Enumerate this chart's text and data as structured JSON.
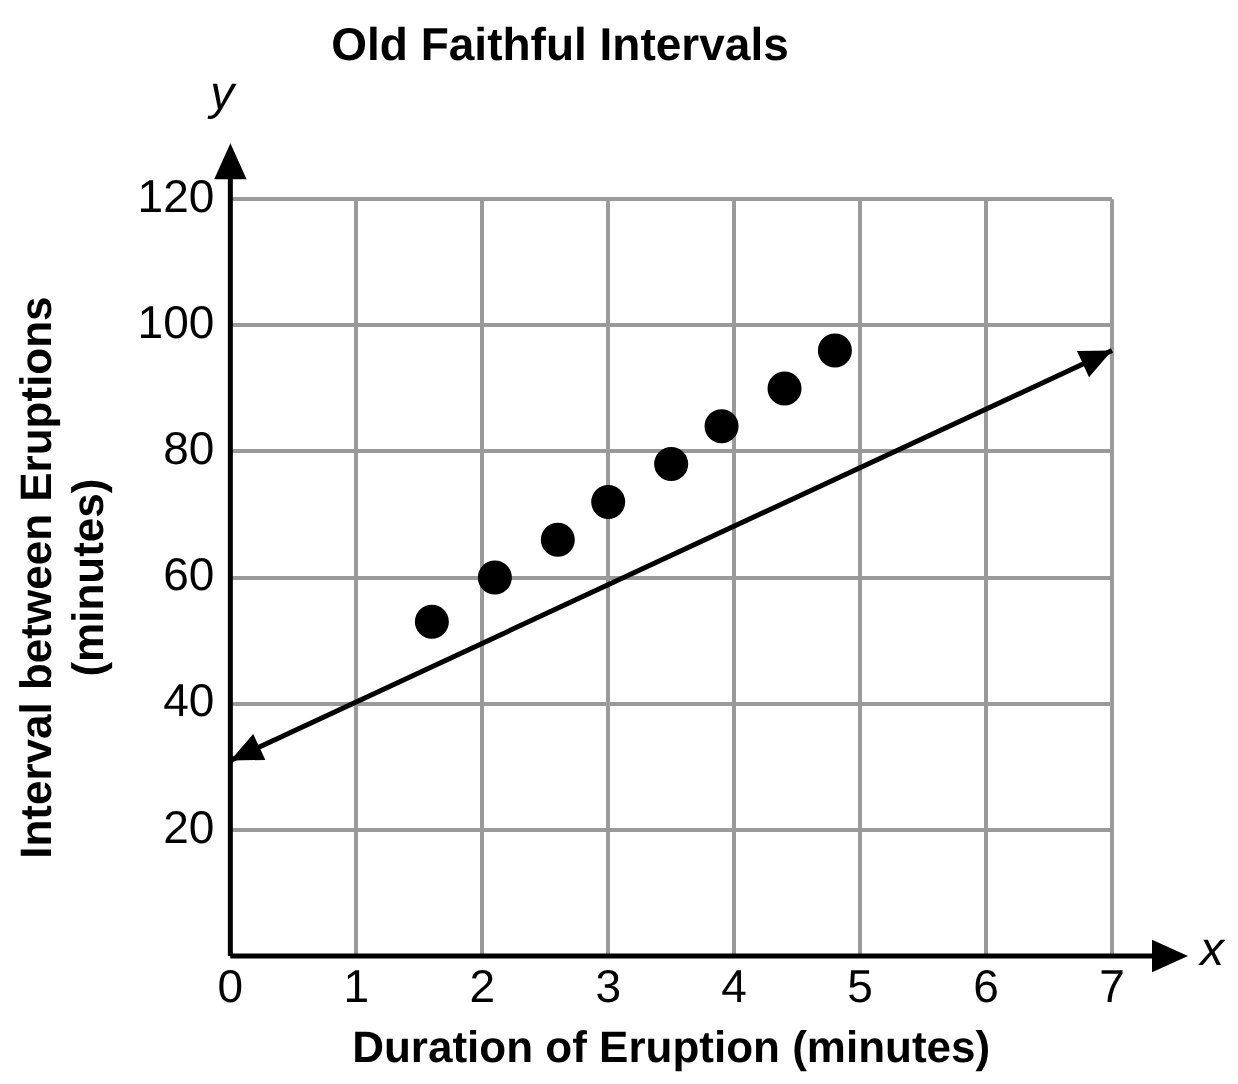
{
  "chart_data": {
    "type": "scatter",
    "title": "Old Faithful Intervals",
    "xlabel": "Duration of Eruption (minutes)",
    "ylabel": "Interval between Eruptions (minutes)",
    "annotations": [
      "x",
      "y"
    ],
    "xlim": [
      0,
      7
    ],
    "ylim": [
      0,
      120
    ],
    "xticks": [
      0,
      1,
      2,
      3,
      4,
      5,
      6,
      7
    ],
    "yticks": [
      {
        "value": 0,
        "label": null
      },
      20,
      40,
      60,
      80,
      100,
      120
    ],
    "grid": true,
    "series": [
      {
        "marker": "circle",
        "color": "#000000",
        "x": [
          1.6,
          2.1,
          2.6,
          3.0,
          3.5,
          3.9,
          4.4,
          4.8
        ],
        "values": [
          53,
          60,
          66,
          72,
          78,
          84,
          90,
          96
        ]
      },
      {
        "type": "line",
        "color": "#000000",
        "x": [
          0,
          7
        ],
        "values": [
          31,
          96
        ]
      }
    ]
  }
}
